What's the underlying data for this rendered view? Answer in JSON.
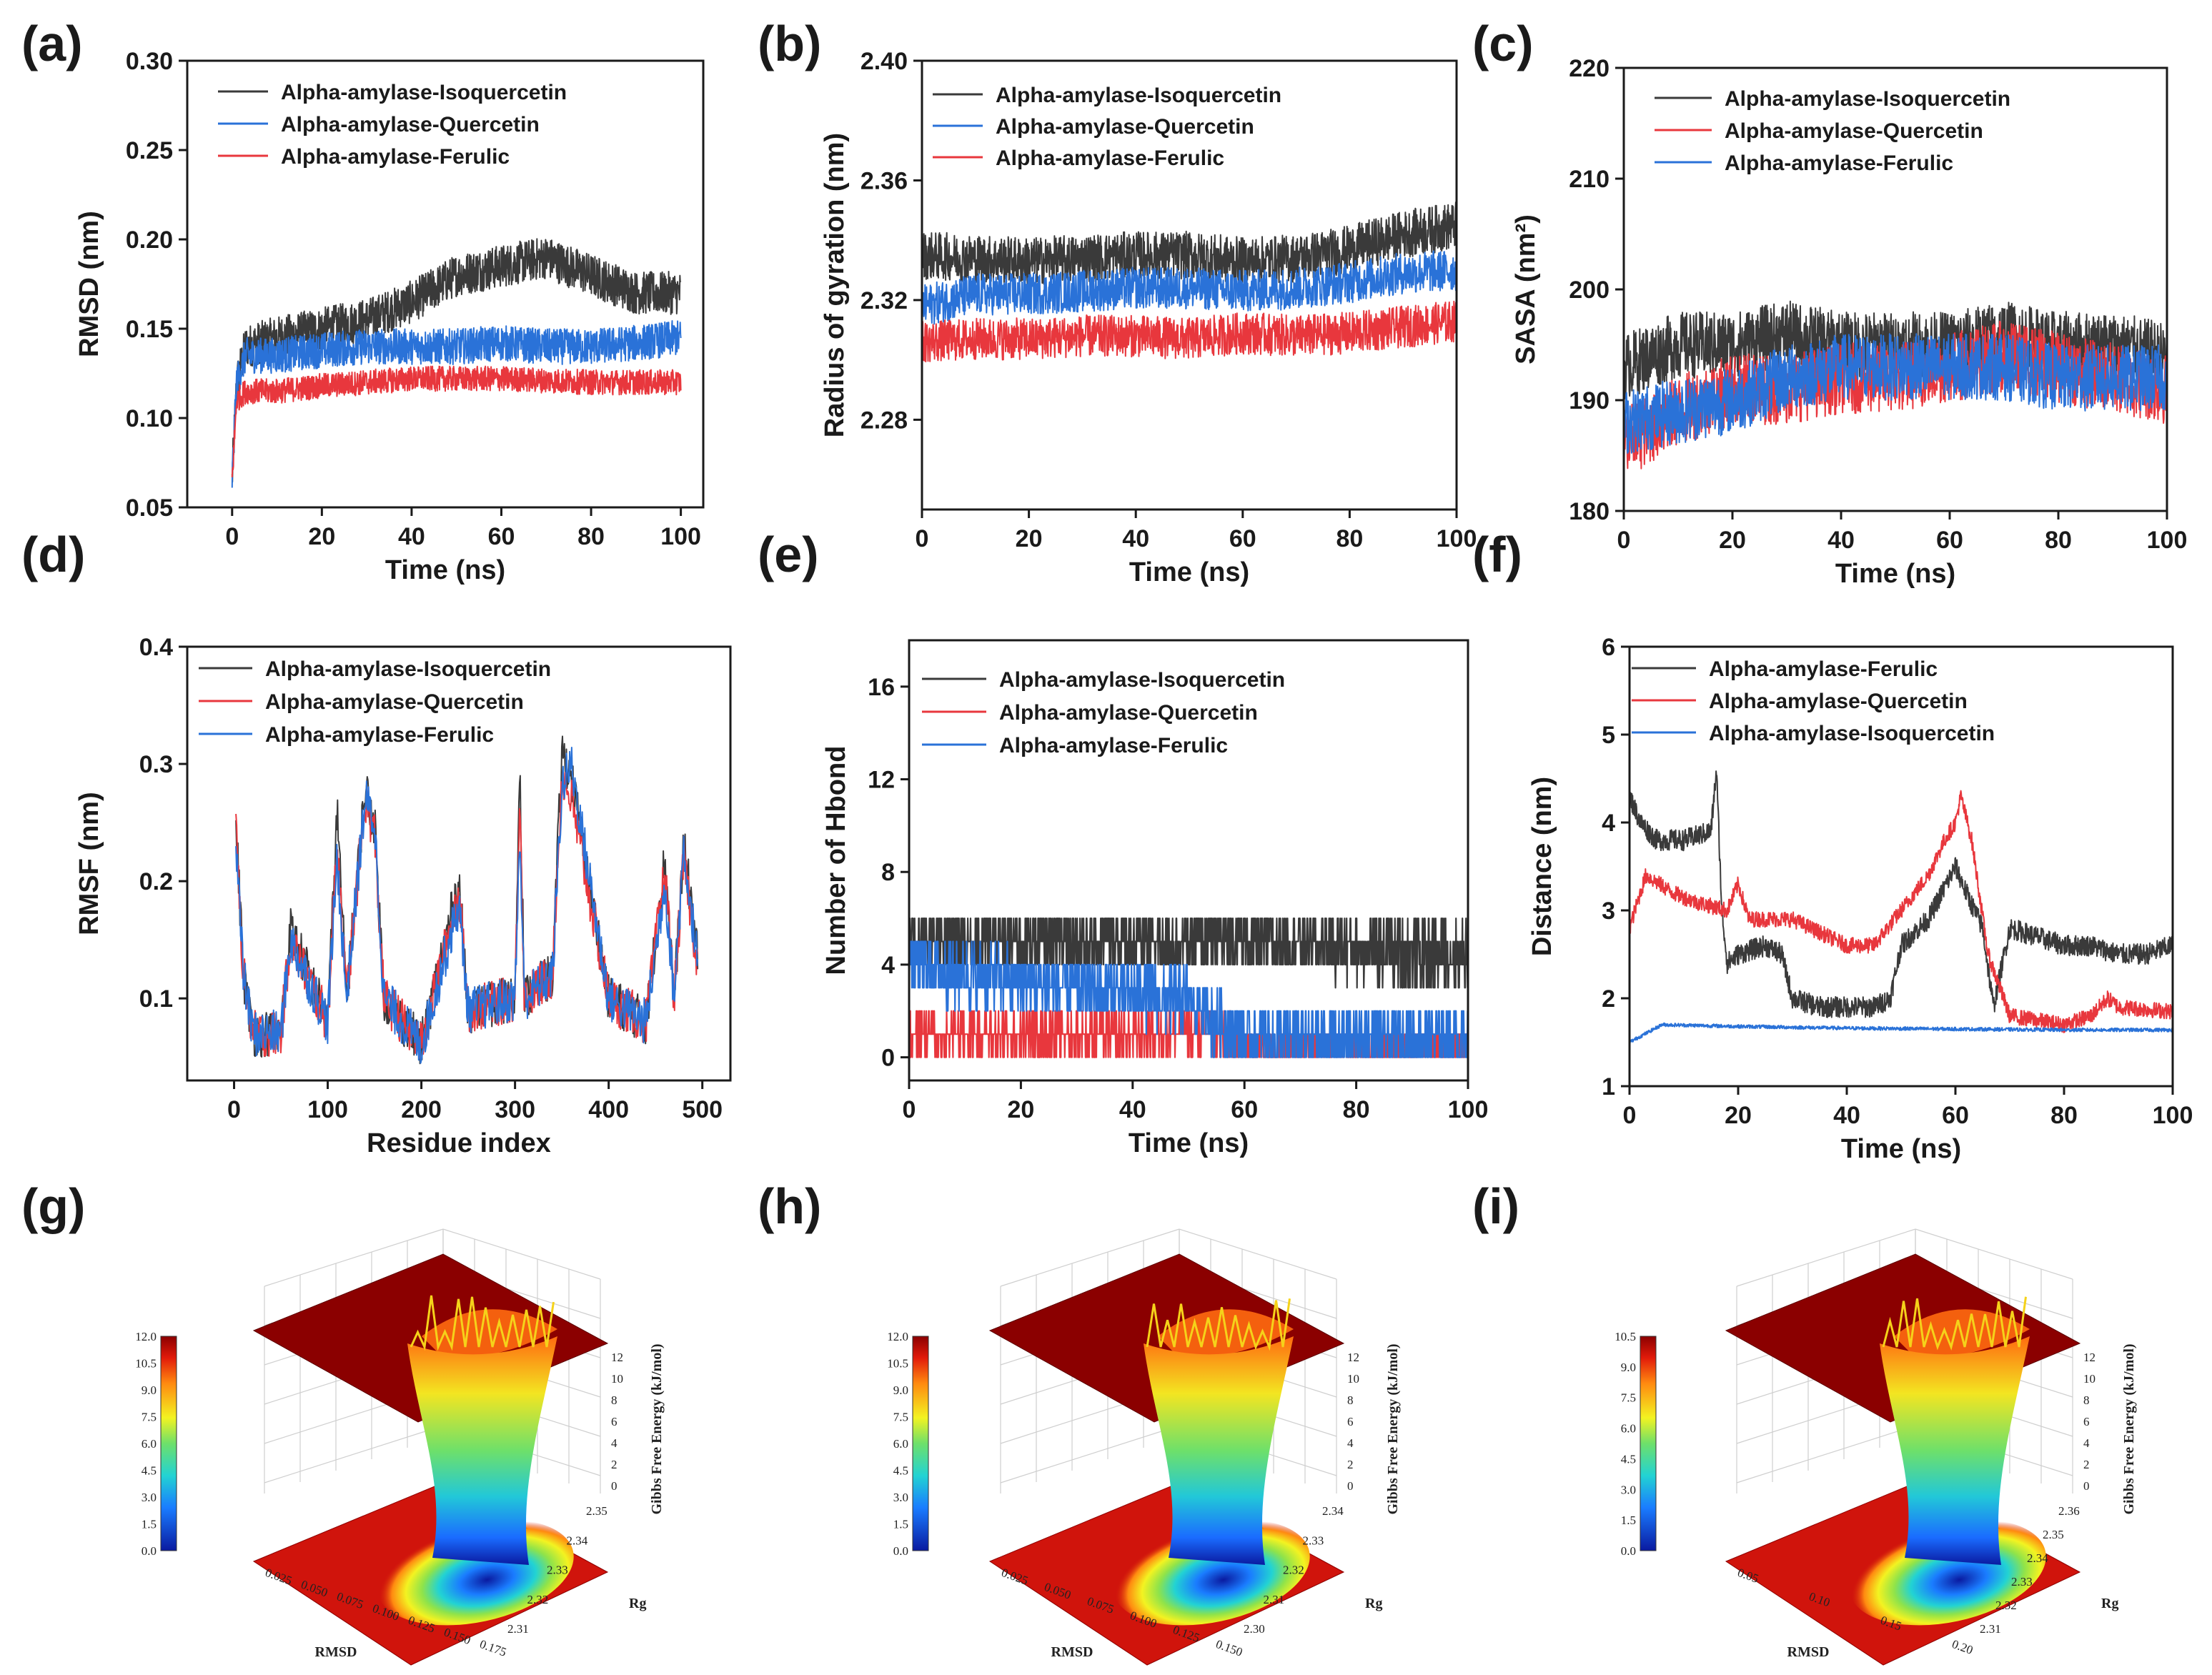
{
  "colors": {
    "Alpha-amylase-Isoquercetin": "#3a3a3a",
    "Alpha-amylase-Quercetin": "#2a72d8",
    "Alpha-amylase-Ferulic": "#e8373d",
    "Alpha-amylase-Quercetin_alt": "#e8373d",
    "Alpha-amylase-Ferulic_alt": "#2a72d8",
    "surface_low": "#0a1aa0",
    "surface_high": "#8b0000"
  },
  "chart_data": [
    {
      "id": "a",
      "panel_label": "(a)",
      "type": "line",
      "xlabel": "Time (ns)",
      "ylabel": "RMSD (nm)",
      "xlim": [
        -10,
        105
      ],
      "ylim": [
        0.05,
        0.3
      ],
      "xticks": [
        0,
        20,
        40,
        60,
        80,
        100
      ],
      "yticks": [
        0.05,
        0.1,
        0.15,
        0.2,
        0.25,
        0.3
      ],
      "ytick_labels": [
        "0.05",
        "0.10",
        "0.15",
        "0.20",
        "0.25",
        "0.30"
      ],
      "series": [
        {
          "name": "Alpha-amylase-Isoquercetin",
          "color": "#3a3a3a",
          "noise": 0.012,
          "x": [
            0,
            1,
            3,
            10,
            20,
            30,
            40,
            50,
            60,
            70,
            80,
            90,
            100
          ],
          "y": [
            0.065,
            0.12,
            0.14,
            0.145,
            0.15,
            0.155,
            0.165,
            0.18,
            0.185,
            0.19,
            0.18,
            0.17,
            0.17
          ]
        },
        {
          "name": "Alpha-amylase-Quercetin",
          "color": "#2a72d8",
          "noise": 0.01,
          "x": [
            0,
            1,
            3,
            10,
            20,
            30,
            40,
            50,
            60,
            70,
            80,
            90,
            100
          ],
          "y": [
            0.065,
            0.12,
            0.135,
            0.135,
            0.138,
            0.14,
            0.14,
            0.14,
            0.142,
            0.14,
            0.14,
            0.142,
            0.145
          ]
        },
        {
          "name": "Alpha-amylase-Ferulic",
          "color": "#e8373d",
          "noise": 0.007,
          "x": [
            0,
            1,
            3,
            10,
            20,
            30,
            40,
            50,
            60,
            70,
            80,
            90,
            100
          ],
          "y": [
            0.065,
            0.11,
            0.115,
            0.115,
            0.118,
            0.12,
            0.122,
            0.122,
            0.122,
            0.121,
            0.12,
            0.12,
            0.12
          ]
        }
      ]
    },
    {
      "id": "b",
      "panel_label": "(b)",
      "type": "line",
      "xlabel": "Time (ns)",
      "ylabel": "Radius of gyration (nm)",
      "xlim": [
        0,
        100
      ],
      "ylim": [
        2.25,
        2.4
      ],
      "xticks": [
        0,
        20,
        40,
        60,
        80,
        100
      ],
      "yticks": [
        2.28,
        2.32,
        2.36,
        2.4
      ],
      "ytick_labels": [
        "2.28",
        "2.32",
        "2.36",
        "2.40"
      ],
      "series": [
        {
          "name": "Alpha-amylase-Isoquercetin",
          "color": "#3a3a3a",
          "noise": 0.008,
          "x": [
            0,
            10,
            20,
            30,
            40,
            50,
            60,
            70,
            80,
            90,
            100
          ],
          "y": [
            2.335,
            2.334,
            2.333,
            2.334,
            2.335,
            2.335,
            2.333,
            2.334,
            2.337,
            2.342,
            2.345
          ]
        },
        {
          "name": "Alpha-amylase-Quercetin",
          "color": "#2a72d8",
          "noise": 0.007,
          "x": [
            0,
            10,
            20,
            30,
            40,
            50,
            60,
            70,
            80,
            90,
            100
          ],
          "y": [
            2.318,
            2.322,
            2.322,
            2.323,
            2.324,
            2.324,
            2.323,
            2.324,
            2.326,
            2.329,
            2.33
          ]
        },
        {
          "name": "Alpha-amylase-Ferulic",
          "color": "#e8373d",
          "noise": 0.007,
          "x": [
            0,
            10,
            20,
            30,
            40,
            50,
            60,
            70,
            80,
            90,
            100
          ],
          "y": [
            2.306,
            2.307,
            2.307,
            2.308,
            2.308,
            2.307,
            2.309,
            2.308,
            2.309,
            2.311,
            2.313
          ]
        }
      ]
    },
    {
      "id": "c",
      "panel_label": "(c)",
      "type": "line",
      "xlabel": "Time (ns)",
      "ylabel": "SASA (nm²)",
      "xlim": [
        0,
        100
      ],
      "ylim": [
        180,
        220
      ],
      "xticks": [
        0,
        20,
        40,
        60,
        80,
        100
      ],
      "yticks": [
        180,
        190,
        200,
        210,
        220
      ],
      "ytick_labels": [
        "180",
        "190",
        "200",
        "210",
        "220"
      ],
      "series": [
        {
          "name": "Alpha-amylase-Isoquercetin",
          "color": "#3a3a3a",
          "noise": 3.0,
          "x": [
            0,
            10,
            20,
            30,
            40,
            50,
            60,
            70,
            80,
            90,
            100
          ],
          "y": [
            193,
            195,
            195,
            196,
            195,
            195,
            195,
            196,
            195,
            195,
            194
          ]
        },
        {
          "name": "Alpha-amylase-Quercetin",
          "color": "#e8373d",
          "noise": 3.2,
          "x": [
            0,
            10,
            20,
            30,
            40,
            50,
            60,
            70,
            80,
            90,
            100
          ],
          "y": [
            186,
            189,
            191,
            191,
            192,
            192,
            193,
            194,
            193,
            192,
            191
          ]
        },
        {
          "name": "Alpha-amylase-Ferulic",
          "color": "#2a72d8",
          "noise": 3.0,
          "x": [
            0,
            10,
            20,
            30,
            40,
            50,
            60,
            70,
            80,
            90,
            100
          ],
          "y": [
            188,
            189,
            190,
            192,
            193,
            193,
            193,
            193,
            192,
            192,
            192
          ]
        }
      ]
    },
    {
      "id": "d",
      "panel_label": "(d)",
      "type": "line",
      "xlabel": "Residue index",
      "ylabel": "RMSF (nm)",
      "xlim": [
        -50,
        530
      ],
      "ylim": [
        0.03,
        0.4
      ],
      "xticks": [
        0,
        100,
        200,
        300,
        400,
        500
      ],
      "yticks": [
        0.1,
        0.2,
        0.3,
        0.4
      ],
      "ytick_labels": [
        "0.1",
        "0.2",
        "0.3",
        "0.4"
      ],
      "series": [
        {
          "name": "Alpha-amylase-Isoquercetin",
          "color": "#3a3a3a",
          "noise": 0.02,
          "x": [
            2,
            10,
            20,
            50,
            60,
            100,
            110,
            120,
            140,
            150,
            160,
            200,
            240,
            250,
            300,
            305,
            310,
            340,
            350,
            360,
            400,
            440,
            460,
            470,
            480,
            495
          ],
          "y": [
            0.25,
            0.12,
            0.07,
            0.07,
            0.16,
            0.08,
            0.26,
            0.1,
            0.28,
            0.25,
            0.1,
            0.06,
            0.2,
            0.09,
            0.1,
            0.31,
            0.1,
            0.12,
            0.31,
            0.29,
            0.1,
            0.08,
            0.22,
            0.1,
            0.23,
            0.14
          ]
        },
        {
          "name": "Alpha-amylase-Quercetin",
          "color": "#e8373d",
          "noise": 0.02,
          "x": [
            2,
            10,
            20,
            50,
            60,
            100,
            110,
            120,
            140,
            150,
            160,
            200,
            240,
            250,
            300,
            305,
            310,
            340,
            350,
            360,
            400,
            440,
            460,
            470,
            480,
            495
          ],
          "y": [
            0.24,
            0.12,
            0.07,
            0.07,
            0.15,
            0.08,
            0.24,
            0.1,
            0.27,
            0.24,
            0.1,
            0.06,
            0.19,
            0.09,
            0.1,
            0.28,
            0.1,
            0.12,
            0.29,
            0.27,
            0.1,
            0.08,
            0.21,
            0.1,
            0.22,
            0.13
          ]
        },
        {
          "name": "Alpha-amylase-Ferulic",
          "color": "#2a72d8",
          "noise": 0.02,
          "x": [
            2,
            10,
            20,
            50,
            60,
            100,
            110,
            120,
            140,
            150,
            160,
            200,
            240,
            250,
            300,
            305,
            310,
            340,
            350,
            360,
            400,
            440,
            460,
            470,
            480,
            495
          ],
          "y": [
            0.23,
            0.12,
            0.07,
            0.07,
            0.15,
            0.08,
            0.22,
            0.1,
            0.27,
            0.25,
            0.1,
            0.06,
            0.18,
            0.09,
            0.1,
            0.24,
            0.1,
            0.12,
            0.28,
            0.3,
            0.1,
            0.08,
            0.2,
            0.1,
            0.23,
            0.13
          ]
        }
      ]
    },
    {
      "id": "e",
      "panel_label": "(e)",
      "type": "line",
      "xlabel": "Time (ns)",
      "ylabel": "Number of Hbond",
      "xlim": [
        0,
        100
      ],
      "ylim": [
        -1,
        18
      ],
      "xticks": [
        0,
        20,
        40,
        60,
        80,
        100
      ],
      "yticks": [
        0,
        4,
        8,
        12,
        16
      ],
      "ytick_labels": [
        "0",
        "4",
        "8",
        "12",
        "16"
      ],
      "series": [
        {
          "name": "Alpha-amylase-Isoquercetin",
          "color": "#3a3a3a",
          "noise": 1.4,
          "integer": true,
          "x": [
            0,
            20,
            40,
            55,
            70,
            90,
            100
          ],
          "y": [
            5,
            5,
            5,
            5,
            5,
            4.5,
            4.5
          ]
        },
        {
          "name": "Alpha-amylase-Quercetin",
          "color": "#e8373d",
          "noise": 0.8,
          "integer": true,
          "x": [
            0,
            20,
            40,
            55,
            60,
            100
          ],
          "y": [
            1,
            1,
            1,
            1,
            0.6,
            0.6
          ]
        },
        {
          "name": "Alpha-amylase-Ferulic",
          "color": "#2a72d8",
          "noise": 1.3,
          "integer": true,
          "x": [
            0,
            10,
            30,
            50,
            55,
            60,
            100
          ],
          "y": [
            4,
            3.5,
            3,
            2.5,
            1.5,
            0.8,
            0.8
          ]
        }
      ]
    },
    {
      "id": "f",
      "panel_label": "(f)",
      "type": "line",
      "xlabel": "Time (ns)",
      "ylabel": "Distance (nm)",
      "xlim": [
        0,
        100
      ],
      "ylim": [
        1,
        6
      ],
      "xticks": [
        0,
        20,
        40,
        60,
        80,
        100
      ],
      "yticks": [
        1,
        2,
        3,
        4,
        5,
        6
      ],
      "ytick_labels": [
        "1",
        "2",
        "3",
        "4",
        "5",
        "6"
      ],
      "series": [
        {
          "name": "Alpha-amylase-Ferulic",
          "color": "#3a3a3a",
          "noise": 0.12,
          "x": [
            0,
            2,
            5,
            10,
            15,
            16,
            17,
            18,
            20,
            25,
            28,
            30,
            35,
            40,
            45,
            48,
            50,
            55,
            60,
            62,
            65,
            67,
            70,
            75,
            80,
            85,
            90,
            95,
            100
          ],
          "y": [
            4.3,
            4.0,
            3.8,
            3.8,
            3.9,
            4.6,
            3.0,
            2.4,
            2.5,
            2.6,
            2.5,
            2.0,
            1.9,
            1.9,
            1.9,
            2.0,
            2.6,
            2.9,
            3.5,
            3.2,
            2.8,
            1.9,
            2.8,
            2.7,
            2.6,
            2.6,
            2.5,
            2.5,
            2.6
          ]
        },
        {
          "name": "Alpha-amylase-Quercetin",
          "color": "#e8373d",
          "noise": 0.09,
          "x": [
            0,
            3,
            8,
            12,
            18,
            20,
            22,
            30,
            40,
            45,
            50,
            55,
            58,
            60,
            61,
            63,
            66,
            70,
            80,
            85,
            88,
            90,
            100
          ],
          "y": [
            2.8,
            3.4,
            3.2,
            3.1,
            3.0,
            3.3,
            2.9,
            2.9,
            2.6,
            2.6,
            3.0,
            3.4,
            3.8,
            4.0,
            4.3,
            3.8,
            2.5,
            1.8,
            1.7,
            1.8,
            2.0,
            1.9,
            1.85
          ]
        },
        {
          "name": "Alpha-amylase-Isoquercetin",
          "color": "#2a72d8",
          "noise": 0.02,
          "x": [
            0,
            3,
            6,
            20,
            40,
            60,
            80,
            100
          ],
          "y": [
            1.5,
            1.6,
            1.7,
            1.68,
            1.66,
            1.65,
            1.64,
            1.64
          ]
        }
      ]
    },
    {
      "id": "g",
      "panel_label": "(g)",
      "type": "surface3d",
      "xlabel": "RMSD",
      "ylabel": "Rg",
      "zlabel": "Gibbs Free Energy (kJ/mol)",
      "colorbar_ticks": [
        "12.0",
        "10.5",
        "9.0",
        "7.5",
        "6.0",
        "4.5",
        "3.0",
        "1.5",
        "0.0"
      ],
      "x_ticks": [
        "0.025",
        "0.050",
        "0.075",
        "0.100",
        "0.125",
        "0.150",
        "0.175"
      ],
      "y_ticks": [
        "2.35",
        "2.34",
        "2.33",
        "2.32",
        "2.31"
      ],
      "z_ticks": [
        "12",
        "10",
        "8",
        "6",
        "4",
        "2",
        "0"
      ]
    },
    {
      "id": "h",
      "panel_label": "(h)",
      "type": "surface3d",
      "xlabel": "RMSD",
      "ylabel": "Rg",
      "zlabel": "Gibbs Free Energy (kJ/mol)",
      "colorbar_ticks": [
        "12.0",
        "10.5",
        "9.0",
        "7.5",
        "6.0",
        "4.5",
        "3.0",
        "1.5",
        "0.0"
      ],
      "x_ticks": [
        "0.025",
        "0.050",
        "0.075",
        "0.100",
        "0.125",
        "0.150"
      ],
      "y_ticks": [
        "2.34",
        "2.33",
        "2.32",
        "2.31",
        "2.30"
      ],
      "z_ticks": [
        "12",
        "10",
        "8",
        "6",
        "4",
        "2",
        "0"
      ]
    },
    {
      "id": "i",
      "panel_label": "(i)",
      "type": "surface3d",
      "xlabel": "RMSD",
      "ylabel": "Rg",
      "zlabel": "Gibbs Free Energy (kJ/mol)",
      "colorbar_ticks": [
        "10.5",
        "9.0",
        "7.5",
        "6.0",
        "4.5",
        "3.0",
        "1.5",
        "0.0"
      ],
      "x_ticks": [
        "0.05",
        "0.10",
        "0.15",
        "0.20"
      ],
      "y_ticks": [
        "2.36",
        "2.35",
        "2.34",
        "2.33",
        "2.32",
        "2.31"
      ],
      "z_ticks": [
        "12",
        "10",
        "8",
        "6",
        "4",
        "2",
        "0"
      ]
    }
  ]
}
